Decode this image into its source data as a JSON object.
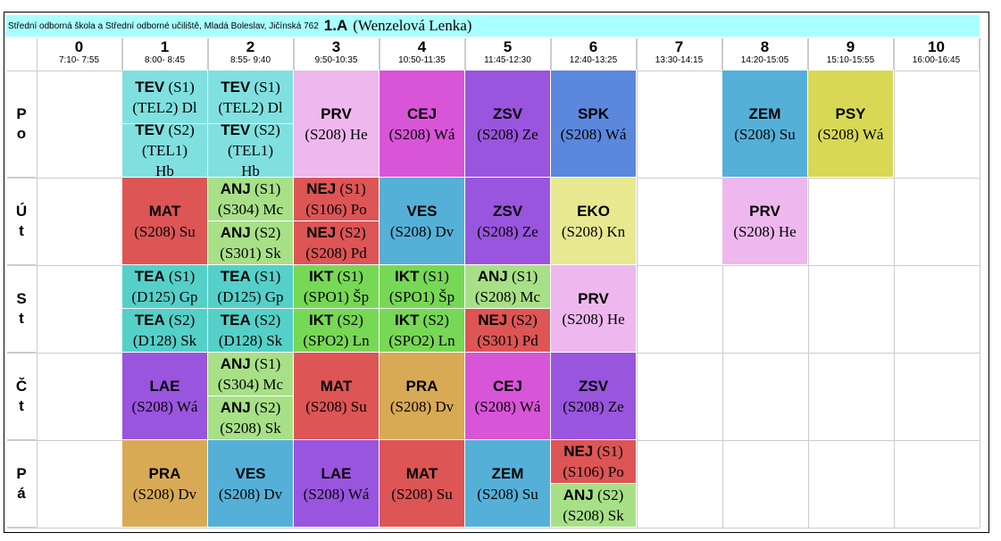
{
  "header": {
    "school": "Střední odborná škola a Střední odborné učiliště, Mladá Boleslav, Jičínská 762",
    "class_name": "1.A",
    "teacher": "(Wenzelová Lenka)"
  },
  "periods": [
    {
      "num": "0",
      "time": "7:10- 7:55"
    },
    {
      "num": "1",
      "time": "8:00- 8:45"
    },
    {
      "num": "2",
      "time": "8:55- 9:40"
    },
    {
      "num": "3",
      "time": "9:50-10:35"
    },
    {
      "num": "4",
      "time": "10:50-11:35"
    },
    {
      "num": "5",
      "time": "11:45-12:30"
    },
    {
      "num": "6",
      "time": "12:40-13:25"
    },
    {
      "num": "7",
      "time": "13:30-14:15"
    },
    {
      "num": "8",
      "time": "14:20-15:05"
    },
    {
      "num": "9",
      "time": "15:10-15:55"
    },
    {
      "num": "10",
      "time": "16:00-16:45"
    }
  ],
  "days": [
    {
      "l1": "P",
      "l2": "o"
    },
    {
      "l1": "Ú",
      "l2": "t"
    },
    {
      "l1": "S",
      "l2": "t"
    },
    {
      "l1": "Č",
      "l2": "t"
    },
    {
      "l1": "P",
      "l2": "á"
    }
  ],
  "colors": {
    "TEV": "#80e0e0",
    "PRV": "#eeb8ee",
    "CEJ": "#d855d8",
    "ZSV": "#9955dd",
    "SPK": "#5b88dd",
    "ZEM": "#55b0d8",
    "PSY": "#d8d855",
    "MAT": "#dd5555",
    "ANJ": "#a8e088",
    "NEJ": "#dd5555",
    "VES": "#55b0d8",
    "EKO": "#e8e890",
    "TEA": "#55d0c8",
    "IKT": "#77d855",
    "LAE": "#9955dd",
    "PRA": "#d8aa55"
  },
  "lessons": [
    {
      "day": 0,
      "period": 1,
      "half": "top",
      "subj": "TEV",
      "l1": " (S1)",
      "l2": "(TEL2) Dl",
      "l3": ""
    },
    {
      "day": 0,
      "period": 1,
      "half": "bottom",
      "subj": "TEV",
      "l1": " (S2)",
      "l2": "(TEL1)",
      "l3": "Hb"
    },
    {
      "day": 0,
      "period": 2,
      "half": "top",
      "subj": "TEV",
      "l1": " (S1)",
      "l2": "(TEL2) Dl",
      "l3": ""
    },
    {
      "day": 0,
      "period": 2,
      "half": "bottom",
      "subj": "TEV",
      "l1": " (S2)",
      "l2": "(TEL1)",
      "l3": "Hb"
    },
    {
      "day": 0,
      "period": 3,
      "half": "full",
      "subj": "PRV",
      "l1": "",
      "l2": "(S208) He",
      "l3": ""
    },
    {
      "day": 0,
      "period": 4,
      "half": "full",
      "subj": "CEJ",
      "l1": "",
      "l2": "(S208) Wá",
      "l3": ""
    },
    {
      "day": 0,
      "period": 5,
      "half": "full",
      "subj": "ZSV",
      "l1": "",
      "l2": "(S208) Ze",
      "l3": ""
    },
    {
      "day": 0,
      "period": 6,
      "half": "full",
      "subj": "SPK",
      "l1": "",
      "l2": "(S208) Wá",
      "l3": ""
    },
    {
      "day": 0,
      "period": 8,
      "half": "full",
      "subj": "ZEM",
      "l1": "",
      "l2": "(S208) Su",
      "l3": ""
    },
    {
      "day": 0,
      "period": 9,
      "half": "full",
      "subj": "PSY",
      "l1": "",
      "l2": "(S208) Wá",
      "l3": ""
    },
    {
      "day": 1,
      "period": 1,
      "half": "full",
      "subj": "MAT",
      "l1": "",
      "l2": "(S208) Su",
      "l3": ""
    },
    {
      "day": 1,
      "period": 2,
      "half": "top",
      "subj": "ANJ",
      "l1": " (S1)",
      "l2": "(S304) Mc",
      "l3": ""
    },
    {
      "day": 1,
      "period": 2,
      "half": "bottom",
      "subj": "ANJ",
      "l1": " (S2)",
      "l2": "(S301) Sk",
      "l3": ""
    },
    {
      "day": 1,
      "period": 3,
      "half": "top",
      "subj": "NEJ",
      "l1": " (S1)",
      "l2": "(S106) Po",
      "l3": ""
    },
    {
      "day": 1,
      "period": 3,
      "half": "bottom",
      "subj": "NEJ",
      "l1": " (S2)",
      "l2": "(S208) Pd",
      "l3": ""
    },
    {
      "day": 1,
      "period": 4,
      "half": "full",
      "subj": "VES",
      "l1": "",
      "l2": "(S208) Dv",
      "l3": ""
    },
    {
      "day": 1,
      "period": 5,
      "half": "full",
      "subj": "ZSV",
      "l1": "",
      "l2": "(S208) Ze",
      "l3": ""
    },
    {
      "day": 1,
      "period": 6,
      "half": "full",
      "subj": "EKO",
      "l1": "",
      "l2": "(S208) Kn",
      "l3": ""
    },
    {
      "day": 1,
      "period": 8,
      "half": "full",
      "subj": "PRV",
      "l1": "",
      "l2": "(S208) He",
      "l3": ""
    },
    {
      "day": 2,
      "period": 1,
      "half": "top",
      "subj": "TEA",
      "l1": " (S1)",
      "l2": "(D125) Gp",
      "l3": ""
    },
    {
      "day": 2,
      "period": 1,
      "half": "bottom",
      "subj": "TEA",
      "l1": " (S2)",
      "l2": "(D128) Sk",
      "l3": ""
    },
    {
      "day": 2,
      "period": 2,
      "half": "top",
      "subj": "TEA",
      "l1": " (S1)",
      "l2": "(D125) Gp",
      "l3": ""
    },
    {
      "day": 2,
      "period": 2,
      "half": "bottom",
      "subj": "TEA",
      "l1": " (S2)",
      "l2": "(D128) Sk",
      "l3": ""
    },
    {
      "day": 2,
      "period": 3,
      "half": "top",
      "subj": "IKT",
      "l1": " (S1)",
      "l2": "(SPO1) Šp",
      "l3": ""
    },
    {
      "day": 2,
      "period": 3,
      "half": "bottom",
      "subj": "IKT",
      "l1": " (S2)",
      "l2": "(SPO2) Ln",
      "l3": ""
    },
    {
      "day": 2,
      "period": 4,
      "half": "top",
      "subj": "IKT",
      "l1": " (S1)",
      "l2": "(SPO1) Šp",
      "l3": ""
    },
    {
      "day": 2,
      "period": 4,
      "half": "bottom",
      "subj": "IKT",
      "l1": " (S2)",
      "l2": "(SPO2) Ln",
      "l3": ""
    },
    {
      "day": 2,
      "period": 5,
      "half": "top",
      "subj": "ANJ",
      "l1": " (S1)",
      "l2": "(S208) Mc",
      "l3": ""
    },
    {
      "day": 2,
      "period": 5,
      "half": "bottom",
      "subj": "NEJ",
      "l1": " (S2)",
      "l2": "(S301) Pd",
      "l3": ""
    },
    {
      "day": 2,
      "period": 6,
      "half": "full",
      "subj": "PRV",
      "l1": "",
      "l2": "(S208) He",
      "l3": ""
    },
    {
      "day": 3,
      "period": 1,
      "half": "full",
      "subj": "LAE",
      "l1": "",
      "l2": "(S208) Wá",
      "l3": ""
    },
    {
      "day": 3,
      "period": 2,
      "half": "top",
      "subj": "ANJ",
      "l1": " (S1)",
      "l2": "(S304) Mc",
      "l3": ""
    },
    {
      "day": 3,
      "period": 2,
      "half": "bottom",
      "subj": "ANJ",
      "l1": " (S2)",
      "l2": "(S208) Sk",
      "l3": ""
    },
    {
      "day": 3,
      "period": 3,
      "half": "full",
      "subj": "MAT",
      "l1": "",
      "l2": "(S208) Su",
      "l3": ""
    },
    {
      "day": 3,
      "period": 4,
      "half": "full",
      "subj": "PRA",
      "l1": "",
      "l2": "(S208) Dv",
      "l3": ""
    },
    {
      "day": 3,
      "period": 5,
      "half": "full",
      "subj": "CEJ",
      "l1": "",
      "l2": "(S208) Wá",
      "l3": ""
    },
    {
      "day": 3,
      "period": 6,
      "half": "full",
      "subj": "ZSV",
      "l1": "",
      "l2": "(S208) Ze",
      "l3": ""
    },
    {
      "day": 4,
      "period": 1,
      "half": "full",
      "subj": "PRA",
      "l1": "",
      "l2": "(S208) Dv",
      "l3": ""
    },
    {
      "day": 4,
      "period": 2,
      "half": "full",
      "subj": "VES",
      "l1": "",
      "l2": "(S208) Dv",
      "l3": ""
    },
    {
      "day": 4,
      "period": 3,
      "half": "full",
      "subj": "LAE",
      "l1": "",
      "l2": "(S208) Wá",
      "l3": ""
    },
    {
      "day": 4,
      "period": 4,
      "half": "full",
      "subj": "MAT",
      "l1": "",
      "l2": "(S208) Su",
      "l3": ""
    },
    {
      "day": 4,
      "period": 5,
      "half": "full",
      "subj": "ZEM",
      "l1": "",
      "l2": "(S208) Su",
      "l3": ""
    },
    {
      "day": 4,
      "period": 6,
      "half": "top",
      "subj": "NEJ",
      "l1": " (S1)",
      "l2": "(S106) Po",
      "l3": ""
    },
    {
      "day": 4,
      "period": 6,
      "half": "bottom",
      "subj": "ANJ",
      "l1": " (S2)",
      "l2": "(S208) Sk",
      "l3": ""
    }
  ]
}
